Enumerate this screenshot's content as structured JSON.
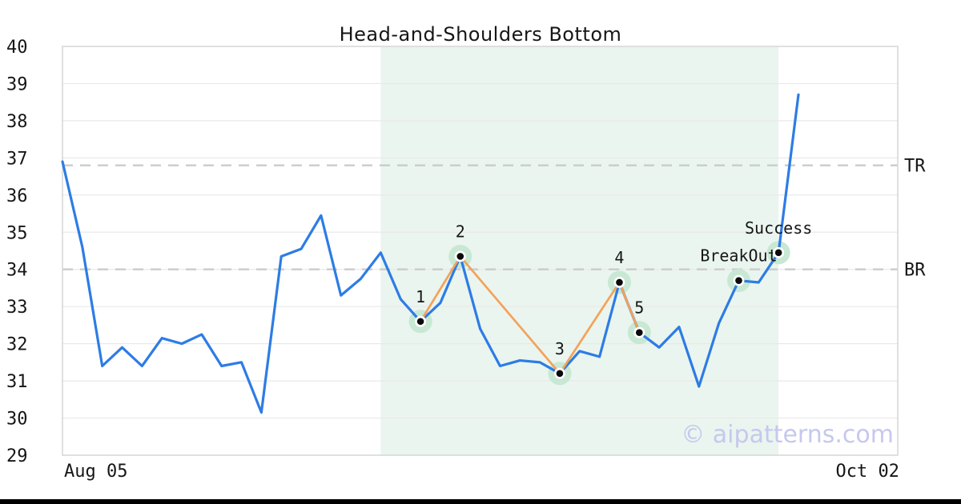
{
  "watermark": "© aipatterns.com",
  "chart_data": {
    "type": "line",
    "title": "Head-and-Shoulders Bottom",
    "xlabel": "",
    "ylabel": "",
    "ylim": [
      29,
      40
    ],
    "y_ticks": [
      40,
      39,
      38,
      37,
      36,
      35,
      34,
      33,
      32,
      31,
      30,
      29
    ],
    "x_tick_labels": [
      "Aug 05",
      "Oct 02"
    ],
    "grid": "horizontal",
    "series": [
      {
        "name": "price",
        "values": [
          36.9,
          34.6,
          31.4,
          31.9,
          31.4,
          32.15,
          32.0,
          32.25,
          31.4,
          31.5,
          30.15,
          34.35,
          34.55,
          35.45,
          33.3,
          33.75,
          34.45,
          33.2,
          32.6,
          33.1,
          34.35,
          32.4,
          31.4,
          31.55,
          31.5,
          31.2,
          31.8,
          31.65,
          33.65,
          32.3,
          31.9,
          32.45,
          30.85,
          32.55,
          33.7,
          33.65,
          34.45,
          38.7
        ]
      }
    ],
    "pattern_points": [
      {
        "label": "1",
        "index": 18,
        "value": 32.6
      },
      {
        "label": "2",
        "index": 20,
        "value": 34.35
      },
      {
        "label": "3",
        "index": 25,
        "value": 31.2
      },
      {
        "label": "4",
        "index": 28,
        "value": 33.65
      },
      {
        "label": "5",
        "index": 29,
        "value": 32.3
      },
      {
        "label": "BreakOut",
        "index": 34,
        "value": 33.7
      },
      {
        "label": "Success",
        "index": 36,
        "value": 34.45
      }
    ],
    "pattern_polyline_indices": [
      18,
      20,
      25,
      28,
      29
    ],
    "levels": [
      {
        "label": "TR",
        "value": 36.8
      },
      {
        "label": "BR",
        "value": 34.0
      }
    ],
    "shaded_region": {
      "start_index": 16,
      "end_index": 36
    },
    "colors": {
      "price_line": "#2d7ce5",
      "pattern_line": "#f4a259",
      "marker_halo": "#c8e8d4",
      "marker_ring": "#ffffff",
      "marker_dot": "#0a0a0a",
      "region_fill": "#eaf5ef",
      "grid_line": "#e9e9e9",
      "plot_border": "#d8d8d8",
      "level_dash": "#cbcbcb",
      "watermark": "#c6c8ee"
    }
  }
}
